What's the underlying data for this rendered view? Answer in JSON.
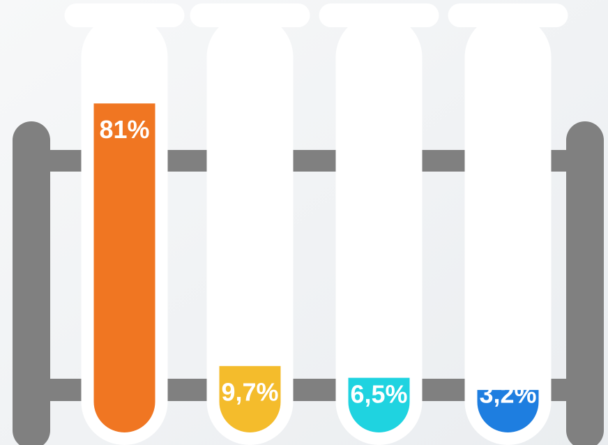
{
  "chart_data": {
    "type": "bar",
    "values": [
      81,
      9.7,
      6.5,
      3.2
    ],
    "value_labels": [
      "81%",
      "9,7%",
      "6,5%",
      "3,2%"
    ],
    "colors": [
      "#f07622",
      "#f4bc2c",
      "#1fd3e0",
      "#1e7ee0"
    ],
    "ylim": [
      0,
      100
    ]
  }
}
